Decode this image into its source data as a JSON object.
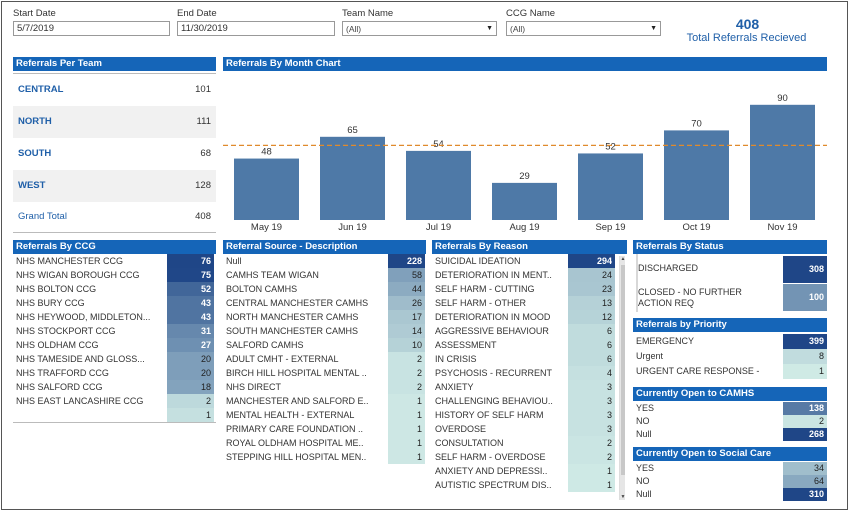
{
  "filters": {
    "start_date_label": "Start Date",
    "start_date": "5/7/2019",
    "end_date_label": "End Date",
    "end_date": "11/30/2019",
    "team_label": "Team Name",
    "team_value": "(All)",
    "ccg_label": "CCG Name",
    "ccg_value": "(All)"
  },
  "kpi": {
    "value": "408",
    "label": "Total Referrals Recieved"
  },
  "teams": {
    "title": "Referrals Per Team",
    "rows": [
      {
        "name": "CENTRAL",
        "value": "101"
      },
      {
        "name": "NORTH",
        "value": "111"
      },
      {
        "name": "SOUTH",
        "value": "68"
      },
      {
        "name": "WEST",
        "value": "128"
      }
    ],
    "total_label": "Grand Total",
    "total_value": "408"
  },
  "chart_data": {
    "type": "bar",
    "title": "Referrals By Month Chart",
    "categories": [
      "May 19",
      "Jun 19",
      "Jul 19",
      "Aug 19",
      "Sep 19",
      "Oct 19",
      "Nov 19"
    ],
    "values": [
      48,
      65,
      54,
      29,
      52,
      70,
      90
    ],
    "average_line": 58.3,
    "bar_color": "#4e79a7",
    "line_color": "#e08a2c",
    "ylim": [
      0,
      100
    ]
  },
  "ccg": {
    "title": "Referrals By CCG",
    "rows": [
      {
        "label": "NHS MANCHESTER CCG",
        "value": 76
      },
      {
        "label": "NHS WIGAN BOROUGH CCG",
        "value": 75
      },
      {
        "label": "NHS BOLTON CCG",
        "value": 52
      },
      {
        "label": "NHS BURY CCG",
        "value": 43
      },
      {
        "label": "NHS HEYWOOD, MIDDLETON...",
        "value": 43
      },
      {
        "label": "NHS STOCKPORT CCG",
        "value": 31
      },
      {
        "label": "NHS OLDHAM CCG",
        "value": 27
      },
      {
        "label": "NHS TAMESIDE AND GLOSS...",
        "value": 20
      },
      {
        "label": "NHS TRAFFORD CCG",
        "value": 20
      },
      {
        "label": "NHS SALFORD CCG",
        "value": 18
      },
      {
        "label": "NHS EAST LANCASHIRE CCG",
        "value": 2
      },
      {
        "label": "",
        "value": 1
      }
    ]
  },
  "source": {
    "title": "Referral Source - Description",
    "rows": [
      {
        "label": "Null",
        "value": 228
      },
      {
        "label": "CAMHS TEAM WIGAN",
        "value": 58
      },
      {
        "label": "BOLTON CAMHS",
        "value": 44
      },
      {
        "label": "CENTRAL MANCHESTER CAMHS",
        "value": 26
      },
      {
        "label": "NORTH MANCHESTER CAMHS",
        "value": 17
      },
      {
        "label": "SOUTH MANCHESTER CAMHS",
        "value": 14
      },
      {
        "label": "SALFORD CAMHS",
        "value": 10
      },
      {
        "label": "ADULT CMHT - EXTERNAL",
        "value": 2
      },
      {
        "label": "BIRCH HILL HOSPITAL MENTAL ..",
        "value": 2
      },
      {
        "label": "NHS DIRECT",
        "value": 2
      },
      {
        "label": "MANCHESTER AND SALFORD E..",
        "value": 1
      },
      {
        "label": "MENTAL HEALTH - EXTERNAL",
        "value": 1
      },
      {
        "label": "PRIMARY CARE FOUNDATION ..",
        "value": 1
      },
      {
        "label": "ROYAL OLDHAM HOSPITAL ME..",
        "value": 1
      },
      {
        "label": "STEPPING HILL HOSPITAL MEN..",
        "value": 1
      }
    ]
  },
  "reason": {
    "title": "Referrals By Reason",
    "rows": [
      {
        "label": "SUICIDAL IDEATION",
        "value": 294
      },
      {
        "label": "DETERIORATION IN MENT..",
        "value": 24
      },
      {
        "label": "SELF HARM - CUTTING",
        "value": 23
      },
      {
        "label": "SELF HARM - OTHER",
        "value": 13
      },
      {
        "label": "DETERIORATION IN MOOD",
        "value": 12
      },
      {
        "label": "AGGRESSIVE BEHAVIOUR",
        "value": 6
      },
      {
        "label": "ASSESSMENT",
        "value": 6
      },
      {
        "label": "IN CRISIS",
        "value": 6
      },
      {
        "label": "PSYCHOSIS - RECURRENT",
        "value": 4
      },
      {
        "label": "ANXIETY",
        "value": 3
      },
      {
        "label": "CHALLENGING BEHAVIOU..",
        "value": 3
      },
      {
        "label": "HISTORY OF SELF HARM",
        "value": 3
      },
      {
        "label": "OVERDOSE",
        "value": 3
      },
      {
        "label": "CONSULTATION",
        "value": 2
      },
      {
        "label": "SELF HARM - OVERDOSE",
        "value": 2
      },
      {
        "label": "ANXIETY AND DEPRESSI..",
        "value": 1
      },
      {
        "label": "AUTISTIC SPECTRUM DIS..",
        "value": 1
      }
    ]
  },
  "status": {
    "title": "Referrals By Status",
    "rows": [
      {
        "label": "DISCHARGED",
        "value": 308
      },
      {
        "label": "CLOSED - NO FURTHER",
        "label2": "ACTION REQ",
        "value": 100
      }
    ]
  },
  "priority": {
    "title": "Referrals by Priority",
    "rows": [
      {
        "label": "EMERGENCY",
        "value": 399
      },
      {
        "label": "Urgent",
        "value": 8
      },
      {
        "label": "URGENT CARE RESPONSE -",
        "value": 1
      }
    ]
  },
  "camhs": {
    "title": "Currently Open to CAMHS",
    "rows": [
      {
        "label": "YES",
        "value": 138
      },
      {
        "label": "NO",
        "value": 2
      },
      {
        "label": "Null",
        "value": 268
      }
    ]
  },
  "social": {
    "title": "Currently Open to Social Care",
    "rows": [
      {
        "label": "YES",
        "value": 34
      },
      {
        "label": "NO",
        "value": 64
      },
      {
        "label": "Null",
        "value": 310
      }
    ]
  }
}
